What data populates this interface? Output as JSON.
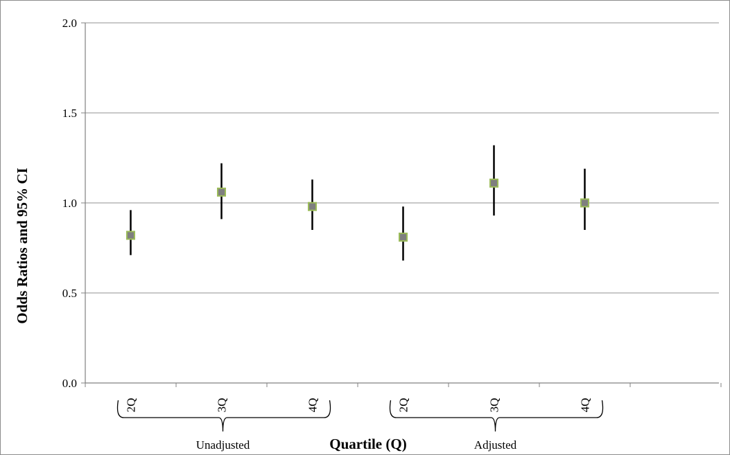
{
  "chart_data": {
    "type": "scatter",
    "title": "",
    "xlabel": "Quartile (Q)",
    "ylabel": "Odds Ratios and 95% CI",
    "ylim": [
      0,
      2
    ],
    "yticks": [
      "0.0",
      "0.5",
      "1.0",
      "1.5",
      "2.0"
    ],
    "grid": true,
    "categories": [
      "2Q",
      "3Q",
      "4Q",
      "2Q",
      "3Q",
      "4Q"
    ],
    "groups": [
      {
        "label": "Unadjusted",
        "categories": [
          "2Q",
          "3Q",
          "4Q"
        ]
      },
      {
        "label": "Adjusted",
        "categories": [
          "2Q",
          "3Q",
          "4Q"
        ]
      }
    ],
    "series": [
      {
        "values": [
          0.82,
          1.06,
          0.98,
          0.81,
          1.11,
          1.0
        ],
        "lower": [
          0.71,
          0.91,
          0.85,
          0.68,
          0.93,
          0.85
        ],
        "upper": [
          0.96,
          1.22,
          1.13,
          0.98,
          1.32,
          1.19
        ]
      }
    ],
    "marker_fill": "#7f7f7f",
    "marker_edge": "#9bbb59",
    "errorbar_color": "#000000",
    "grid_color": "#a6a6a6"
  }
}
